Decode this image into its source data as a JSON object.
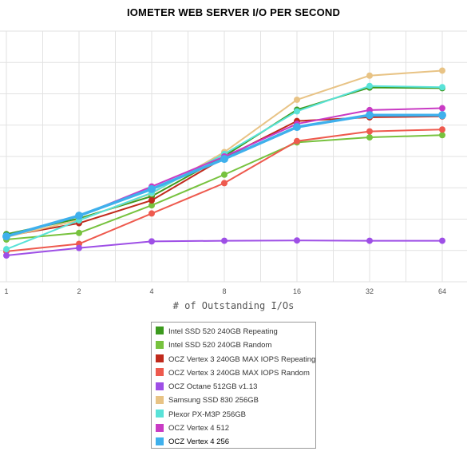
{
  "chart_data": {
    "type": "line",
    "title": "IOMETER WEB SERVER I/O PER SECOND",
    "xlabel": "# of Outstanding I/Os",
    "ylabel": "",
    "x": [
      "1",
      "2",
      "4",
      "8",
      "16",
      "32",
      "64"
    ],
    "x_scale": "log2",
    "y_tick_values": [
      0,
      5000,
      10000,
      15000,
      20000,
      25000,
      30000,
      35000,
      40000
    ],
    "ylim": [
      0,
      40000
    ],
    "grid": true,
    "y_tick_labels_visible": false,
    "legend_position": "bottom-center",
    "series": [
      {
        "name": "Intel SSD 520 240GB Repeating",
        "color": "#3c9a1e",
        "values": [
          7600,
          10100,
          13650,
          20050,
          27450,
          31000,
          30900
        ]
      },
      {
        "name": "Intel SSD 520 240GB Random",
        "color": "#77c23e",
        "values": [
          6750,
          7800,
          12200,
          17100,
          22250,
          23050,
          23400
        ]
      },
      {
        "name": "OCZ Vertex 3 240GB MAX IOPS Repeating",
        "color": "#c02a1c",
        "values": [
          7300,
          9350,
          13000,
          19800,
          25650,
          26250,
          26400
        ]
      },
      {
        "name": "OCZ Vertex 3 240GB MAX IOPS Random",
        "color": "#ee5a4e",
        "values": [
          4850,
          6050,
          10900,
          15750,
          22450,
          24000,
          24300
        ]
      },
      {
        "name": "OCZ Octane 512GB v1.13",
        "color": "#9e4fe6",
        "values": [
          4200,
          5400,
          6450,
          6550,
          6600,
          6550,
          6550
        ]
      },
      {
        "name": "Samsung SSD 830 256GB",
        "color": "#e8c385",
        "values": [
          7150,
          9850,
          14100,
          20700,
          29050,
          32900,
          33700
        ]
      },
      {
        "name": "Plexor PX-M3P 256GB",
        "color": "#59e2d8",
        "values": [
          5200,
          9800,
          14200,
          20400,
          27200,
          31250,
          31050
        ]
      },
      {
        "name": "OCZ Vertex 4 512",
        "color": "#c93bc4",
        "values": [
          7300,
          10500,
          15200,
          20000,
          25200,
          27400,
          27700
        ]
      },
      {
        "name": "OCZ Vertex 4 256",
        "color": "#3fb0ec",
        "values": [
          7250,
          10550,
          14800,
          19600,
          24700,
          26600,
          26600
        ]
      }
    ]
  },
  "legend": {
    "active_index": 8
  }
}
